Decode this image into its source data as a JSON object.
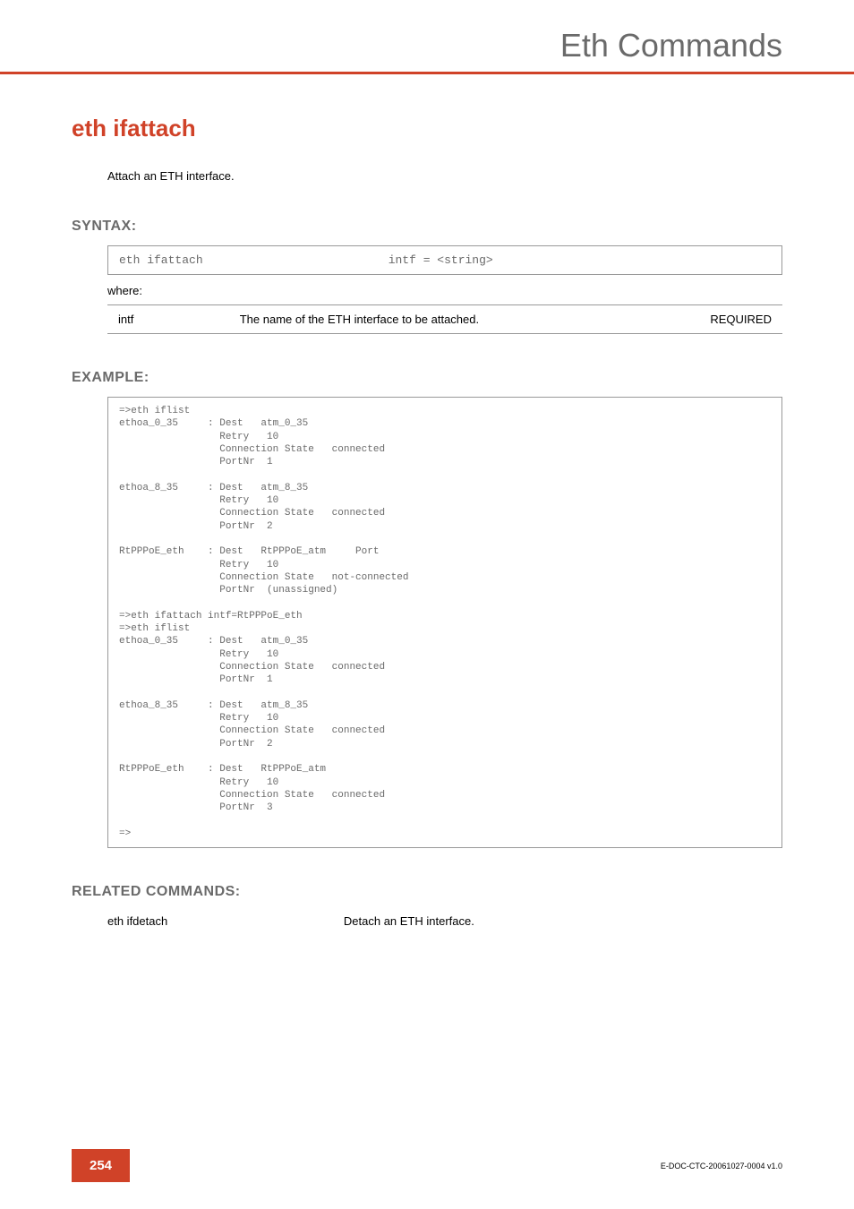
{
  "header": {
    "title": "Eth Commands"
  },
  "command": {
    "title": "eth ifattach",
    "description": "Attach an ETH interface."
  },
  "syntax": {
    "heading": "SYNTAX:",
    "cmd": "eth ifattach",
    "args": "intf = <string>",
    "where_label": "where:",
    "params": [
      {
        "name": "intf",
        "description": "The name of the ETH interface to be attached.",
        "required": "REQUIRED"
      }
    ]
  },
  "example": {
    "heading": "EXAMPLE:",
    "code": "=>eth iflist\nethoa_0_35     : Dest   atm_0_35\n                 Retry   10\n                 Connection State   connected\n                 PortNr  1\n\nethoa_8_35     : Dest   atm_8_35\n                 Retry   10\n                 Connection State   connected\n                 PortNr  2\n\nRtPPPoE_eth    : Dest   RtPPPoE_atm     Port\n                 Retry   10\n                 Connection State   not-connected\n                 PortNr  (unassigned)\n\n=>eth ifattach intf=RtPPPoE_eth\n=>eth iflist\nethoa_0_35     : Dest   atm_0_35\n                 Retry   10\n                 Connection State   connected\n                 PortNr  1\n\nethoa_8_35     : Dest   atm_8_35\n                 Retry   10\n                 Connection State   connected\n                 PortNr  2\n\nRtPPPoE_eth    : Dest   RtPPPoE_atm\n                 Retry   10\n                 Connection State   connected\n                 PortNr  3\n\n=>"
  },
  "related": {
    "heading": "RELATED COMMANDS:",
    "items": [
      {
        "cmd": "eth ifdetach",
        "desc": "Detach an ETH interface."
      }
    ]
  },
  "footer": {
    "page": "254",
    "doc_id": "E-DOC-CTC-20061027-0004 v1.0"
  },
  "colors": {
    "accent": "#d04228",
    "heading_gray": "#6a6a6a",
    "border": "#999999"
  }
}
